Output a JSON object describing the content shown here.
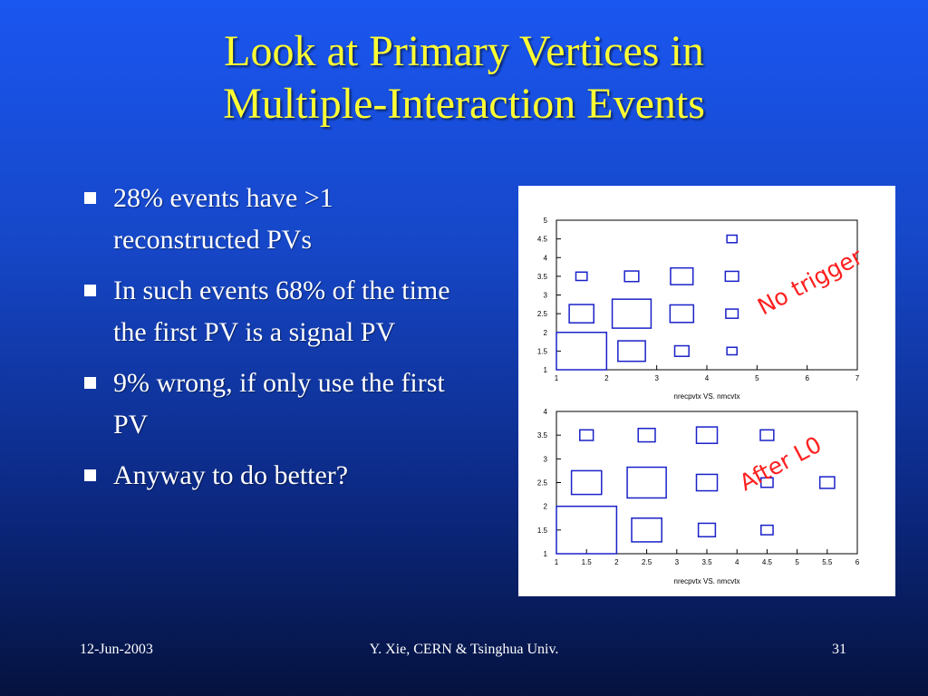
{
  "slide": {
    "title_line1": "Look at Primary Vertices in",
    "title_line2": "Multiple-Interaction Events",
    "bullets": [
      "28% events have >1 reconstructed PVs",
      "In such events 68% of the time the first PV is a signal PV",
      "9% wrong, if only use the first PV",
      "Anyway to do better?"
    ],
    "footer": {
      "date": "12-Jun-2003",
      "author": "Y. Xie, CERN & Tsinghua Univ.",
      "page": "31"
    }
  },
  "colors": {
    "title": "#ffff33",
    "text": "#ffffff",
    "box": "#1a22c8",
    "label": "#ff2020"
  },
  "chart_data": [
    {
      "type": "heatmap",
      "title": "",
      "label": "No trigger",
      "xlabel": "nrecpvtx VS. nmcvtx",
      "ylabel": "",
      "xlim": [
        1,
        7
      ],
      "ylim": [
        1,
        5
      ],
      "x_ticks": [
        1,
        2,
        3,
        4,
        5,
        6,
        7
      ],
      "y_ticks": [
        1,
        1.5,
        2,
        2.5,
        3,
        3.5,
        4,
        4.5,
        5
      ],
      "bins": [
        {
          "x": 1.5,
          "y": 1.5,
          "rel_size": 1.0
        },
        {
          "x": 2.5,
          "y": 1.5,
          "rel_size": 0.3
        },
        {
          "x": 3.5,
          "y": 1.5,
          "rel_size": 0.08
        },
        {
          "x": 4.5,
          "y": 1.5,
          "rel_size": 0.04
        },
        {
          "x": 1.5,
          "y": 2.5,
          "rel_size": 0.24
        },
        {
          "x": 2.5,
          "y": 2.5,
          "rel_size": 0.6
        },
        {
          "x": 3.5,
          "y": 2.5,
          "rel_size": 0.22
        },
        {
          "x": 4.5,
          "y": 2.5,
          "rel_size": 0.06
        },
        {
          "x": 1.5,
          "y": 3.5,
          "rel_size": 0.05
        },
        {
          "x": 2.5,
          "y": 3.5,
          "rel_size": 0.08
        },
        {
          "x": 3.5,
          "y": 3.5,
          "rel_size": 0.2
        },
        {
          "x": 4.5,
          "y": 3.5,
          "rel_size": 0.07
        },
        {
          "x": 4.5,
          "y": 4.5,
          "rel_size": 0.04
        }
      ]
    },
    {
      "type": "heatmap",
      "title": "",
      "label": "After L0",
      "xlabel": "nrecpvtx VS. nmcvtx",
      "ylabel": "",
      "xlim": [
        1,
        6
      ],
      "ylim": [
        1,
        4
      ],
      "x_ticks": [
        1,
        1.5,
        2,
        2.5,
        3,
        3.5,
        4,
        4.5,
        5,
        5.5,
        6
      ],
      "y_ticks": [
        1,
        1.5,
        2,
        2.5,
        3,
        3.5,
        4
      ],
      "bins": [
        {
          "x": 1.5,
          "y": 1.5,
          "rel_size": 1.0
        },
        {
          "x": 2.5,
          "y": 1.5,
          "rel_size": 0.25
        },
        {
          "x": 3.5,
          "y": 1.5,
          "rel_size": 0.08
        },
        {
          "x": 4.5,
          "y": 1.5,
          "rel_size": 0.04
        },
        {
          "x": 1.5,
          "y": 2.5,
          "rel_size": 0.25
        },
        {
          "x": 2.5,
          "y": 2.5,
          "rel_size": 0.42
        },
        {
          "x": 3.5,
          "y": 2.5,
          "rel_size": 0.12
        },
        {
          "x": 4.5,
          "y": 2.5,
          "rel_size": 0.04
        },
        {
          "x": 5.5,
          "y": 2.5,
          "rel_size": 0.06
        },
        {
          "x": 1.5,
          "y": 3.5,
          "rel_size": 0.05
        },
        {
          "x": 2.5,
          "y": 3.5,
          "rel_size": 0.08
        },
        {
          "x": 3.5,
          "y": 3.5,
          "rel_size": 0.12
        },
        {
          "x": 4.5,
          "y": 3.5,
          "rel_size": 0.05
        }
      ]
    }
  ]
}
